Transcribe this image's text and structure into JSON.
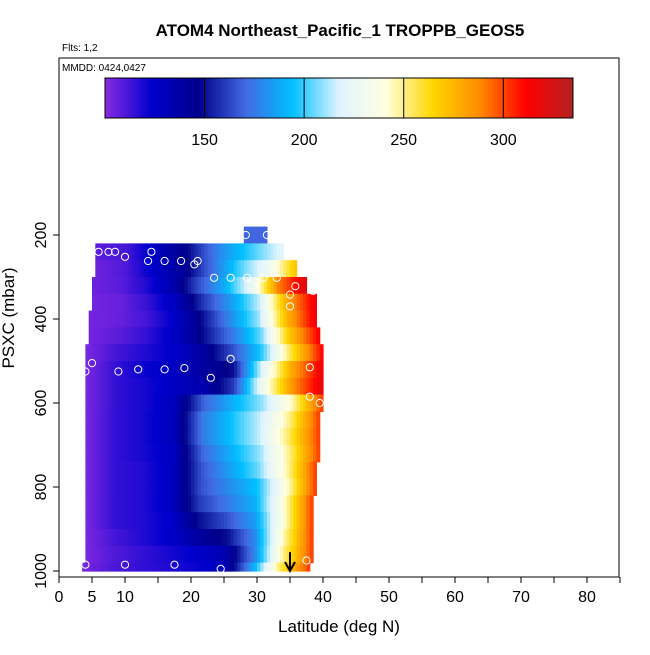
{
  "chart_data": {
    "type": "heatmap",
    "title": "ATOM4 Northeast_Pacific_1 TROPPB_GEOS5",
    "flights_note": "Flts: 1,2",
    "date_note": "MMDD: 0424,0427",
    "xlabel": "Latitude (deg N)",
    "ylabel": "PSXC (mbar)",
    "xlim": [
      0,
      85
    ],
    "ylim": [
      1000,
      0
    ],
    "x_ticks": [
      0,
      5,
      10,
      20,
      30,
      40,
      50,
      60,
      70,
      80
    ],
    "x_minor_ticks": [
      15,
      25,
      35,
      45,
      55,
      65,
      75,
      85
    ],
    "y_ticks": [
      200,
      400,
      600,
      800,
      1000
    ],
    "colorbar": {
      "min": 100,
      "max": 335,
      "ticks": [
        150,
        200,
        250,
        300
      ],
      "colors": [
        "#8a2be2",
        "#0000cd",
        "#00008b",
        "#4169e1",
        "#00bfff",
        "#e0f4ff",
        "#ffffe0",
        "#ffd700",
        "#ff8c00",
        "#ff0000",
        "#b22222"
      ]
    },
    "grid": {
      "lat_start": 3.5,
      "lat_step": 0.5,
      "rows": [
        {
          "p": [
            180,
            220
          ],
          "lat": [
            28,
            31.5
          ],
          "v": [
            170,
            170
          ]
        },
        {
          "p": [
            220,
            260
          ],
          "lat": [
            5.5,
            34
          ],
          "v": [
            108,
            112,
            130,
            150,
            180,
            200,
            220
          ]
        },
        {
          "p": [
            260,
            300
          ],
          "lat": [
            5.5,
            36
          ],
          "v": [
            105,
            110,
            125,
            140,
            170,
            200,
            225,
            270
          ]
        },
        {
          "p": [
            300,
            340
          ],
          "lat": [
            5,
            37.5
          ],
          "v": [
            105,
            108,
            118,
            135,
            165,
            190,
            225,
            290,
            320
          ]
        },
        {
          "p": [
            340,
            380
          ],
          "lat": [
            5,
            39
          ],
          "v": [
            104,
            106,
            115,
            130,
            160,
            185,
            215,
            280,
            315
          ]
        },
        {
          "p": [
            380,
            420
          ],
          "lat": [
            4.5,
            39
          ],
          "v": [
            104,
            106,
            112,
            125,
            150,
            180,
            210,
            275,
            315
          ]
        },
        {
          "p": [
            420,
            460
          ],
          "lat": [
            4.5,
            39.5
          ],
          "v": [
            104,
            108,
            115,
            128,
            150,
            175,
            205,
            270,
            312
          ]
        },
        {
          "p": [
            460,
            500
          ],
          "lat": [
            4,
            40
          ],
          "v": [
            103,
            112,
            118,
            125,
            140,
            165,
            200,
            260,
            310
          ]
        },
        {
          "p": [
            500,
            540
          ],
          "lat": [
            4,
            40
          ],
          "v": [
            103,
            115,
            122,
            128,
            140,
            150,
            220,
            280,
            315
          ]
        },
        {
          "p": [
            540,
            580
          ],
          "lat": [
            4,
            40
          ],
          "v": [
            103,
            115,
            120,
            128,
            135,
            160,
            230,
            285,
            318
          ]
        },
        {
          "p": [
            580,
            620
          ],
          "lat": [
            4,
            40
          ],
          "v": [
            103,
            115,
            120,
            130,
            170,
            190,
            210,
            245,
            300
          ]
        },
        {
          "p": [
            620,
            660
          ],
          "lat": [
            4,
            39.5
          ],
          "v": [
            103,
            115,
            120,
            130,
            175,
            195,
            215,
            250,
            300
          ]
        },
        {
          "p": [
            660,
            700
          ],
          "lat": [
            4,
            39.5
          ],
          "v": [
            103,
            115,
            120,
            130,
            175,
            195,
            215,
            255,
            300
          ]
        },
        {
          "p": [
            700,
            740
          ],
          "lat": [
            4,
            39.5
          ],
          "v": [
            103,
            115,
            120,
            128,
            170,
            190,
            210,
            250,
            300
          ]
        },
        {
          "p": [
            740,
            780
          ],
          "lat": [
            4,
            39
          ],
          "v": [
            103,
            115,
            118,
            128,
            165,
            185,
            205,
            245,
            300
          ]
        },
        {
          "p": [
            780,
            820
          ],
          "lat": [
            4,
            39
          ],
          "v": [
            103,
            115,
            118,
            128,
            165,
            180,
            195,
            240,
            300
          ]
        },
        {
          "p": [
            820,
            860
          ],
          "lat": [
            4,
            38.5
          ],
          "v": [
            103,
            115,
            118,
            128,
            160,
            175,
            190,
            240,
            300
          ]
        },
        {
          "p": [
            860,
            900
          ],
          "lat": [
            4,
            38.5
          ],
          "v": [
            103,
            115,
            118,
            125,
            150,
            165,
            185,
            240,
            300
          ]
        },
        {
          "p": [
            900,
            940
          ],
          "lat": [
            4,
            38.5
          ],
          "v": [
            103,
            112,
            118,
            125,
            140,
            150,
            180,
            245,
            300
          ]
        },
        {
          "p": [
            940,
            980
          ],
          "lat": [
            4,
            38.5
          ],
          "v": [
            103,
            110,
            115,
            120,
            125,
            135,
            180,
            250,
            300
          ]
        },
        {
          "p": [
            980,
            1000
          ],
          "lat": [
            3.5,
            38
          ],
          "v": [
            103,
            110,
            115,
            118,
            122,
            128,
            185,
            255,
            300
          ]
        }
      ]
    },
    "flight_points": [
      [
        28.3,
        200
      ],
      [
        31.5,
        200
      ],
      [
        6,
        240
      ],
      [
        7.5,
        240
      ],
      [
        8.5,
        240
      ],
      [
        14,
        240
      ],
      [
        21,
        262
      ],
      [
        10,
        252
      ],
      [
        13.5,
        262
      ],
      [
        16,
        262
      ],
      [
        18.5,
        262
      ],
      [
        20.5,
        270
      ],
      [
        23.5,
        302
      ],
      [
        26,
        302
      ],
      [
        28.5,
        302
      ],
      [
        31,
        302
      ],
      [
        33,
        302
      ],
      [
        35,
        342
      ],
      [
        35.8,
        322
      ],
      [
        38.5,
        333
      ],
      [
        35,
        370
      ],
      [
        5,
        505
      ],
      [
        4,
        525
      ],
      [
        9,
        525
      ],
      [
        12,
        520
      ],
      [
        16,
        520
      ],
      [
        19,
        517
      ],
      [
        23,
        540
      ],
      [
        26,
        495
      ],
      [
        38,
        515
      ],
      [
        38,
        585
      ],
      [
        39.5,
        600
      ],
      [
        4,
        985
      ],
      [
        10,
        985
      ],
      [
        17.5,
        985
      ],
      [
        24.5,
        995
      ],
      [
        37.5,
        975
      ]
    ],
    "arrow_marker": {
      "lat": 35,
      "p_from": 955,
      "p_to": 1000
    }
  }
}
